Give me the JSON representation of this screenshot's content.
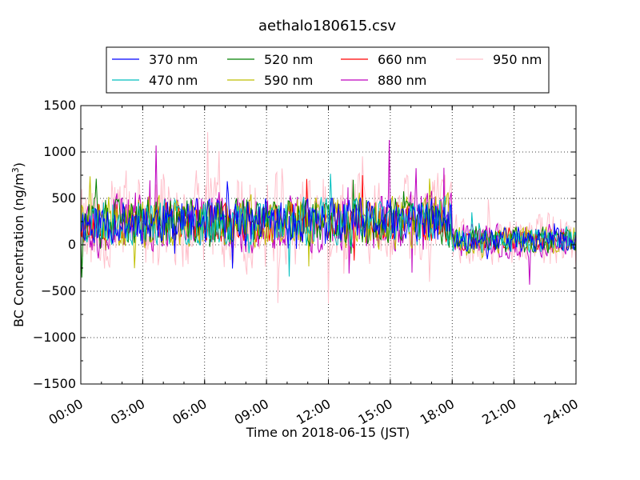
{
  "chart_data": {
    "type": "line",
    "title": "aethalo180615.csv",
    "xlabel": "Time on 2018-06-15 (JST)",
    "ylabel_main": "BC Concentration (ng/m",
    "ylabel_sup": "3",
    "ylabel_tail": ")",
    "xlim_hours": [
      0,
      24
    ],
    "ylim": [
      -1500,
      1500
    ],
    "grid": true,
    "legend_position": "top",
    "x_tick_labels": [
      "00:00",
      "03:00",
      "06:00",
      "09:00",
      "12:00",
      "15:00",
      "18:00",
      "21:00",
      "24:00"
    ],
    "y_ticks": [
      -1500,
      -1000,
      -500,
      0,
      500,
      1000,
      1500
    ],
    "y_tick_labels": [
      "−1500",
      "−1000",
      "−500",
      "0",
      "500",
      "1000",
      "1500"
    ],
    "sample_interval_minutes": 3,
    "series": [
      {
        "name": "370 nm",
        "color": "#0000ff",
        "noise": 220,
        "seed": 11
      },
      {
        "name": "470 nm",
        "color": "#00bfbf",
        "noise": 230,
        "seed": 23
      },
      {
        "name": "520 nm",
        "color": "#008000",
        "noise": 230,
        "seed": 37
      },
      {
        "name": "590 nm",
        "color": "#bfbf00",
        "noise": 260,
        "seed": 41
      },
      {
        "name": "660 nm",
        "color": "#ff0000",
        "noise": 190,
        "seed": 53
      },
      {
        "name": "880 nm",
        "color": "#bf00bf",
        "noise": 300,
        "seed": 67
      },
      {
        "name": "950 nm",
        "color": "#ffc0cb",
        "noise": 480,
        "seed": 79
      }
    ],
    "segments": [
      {
        "start_hour": 0,
        "end_hour": 18,
        "mean": 250
      },
      {
        "start_hour": 18,
        "end_hour": 24,
        "mean": 50
      }
    ]
  }
}
